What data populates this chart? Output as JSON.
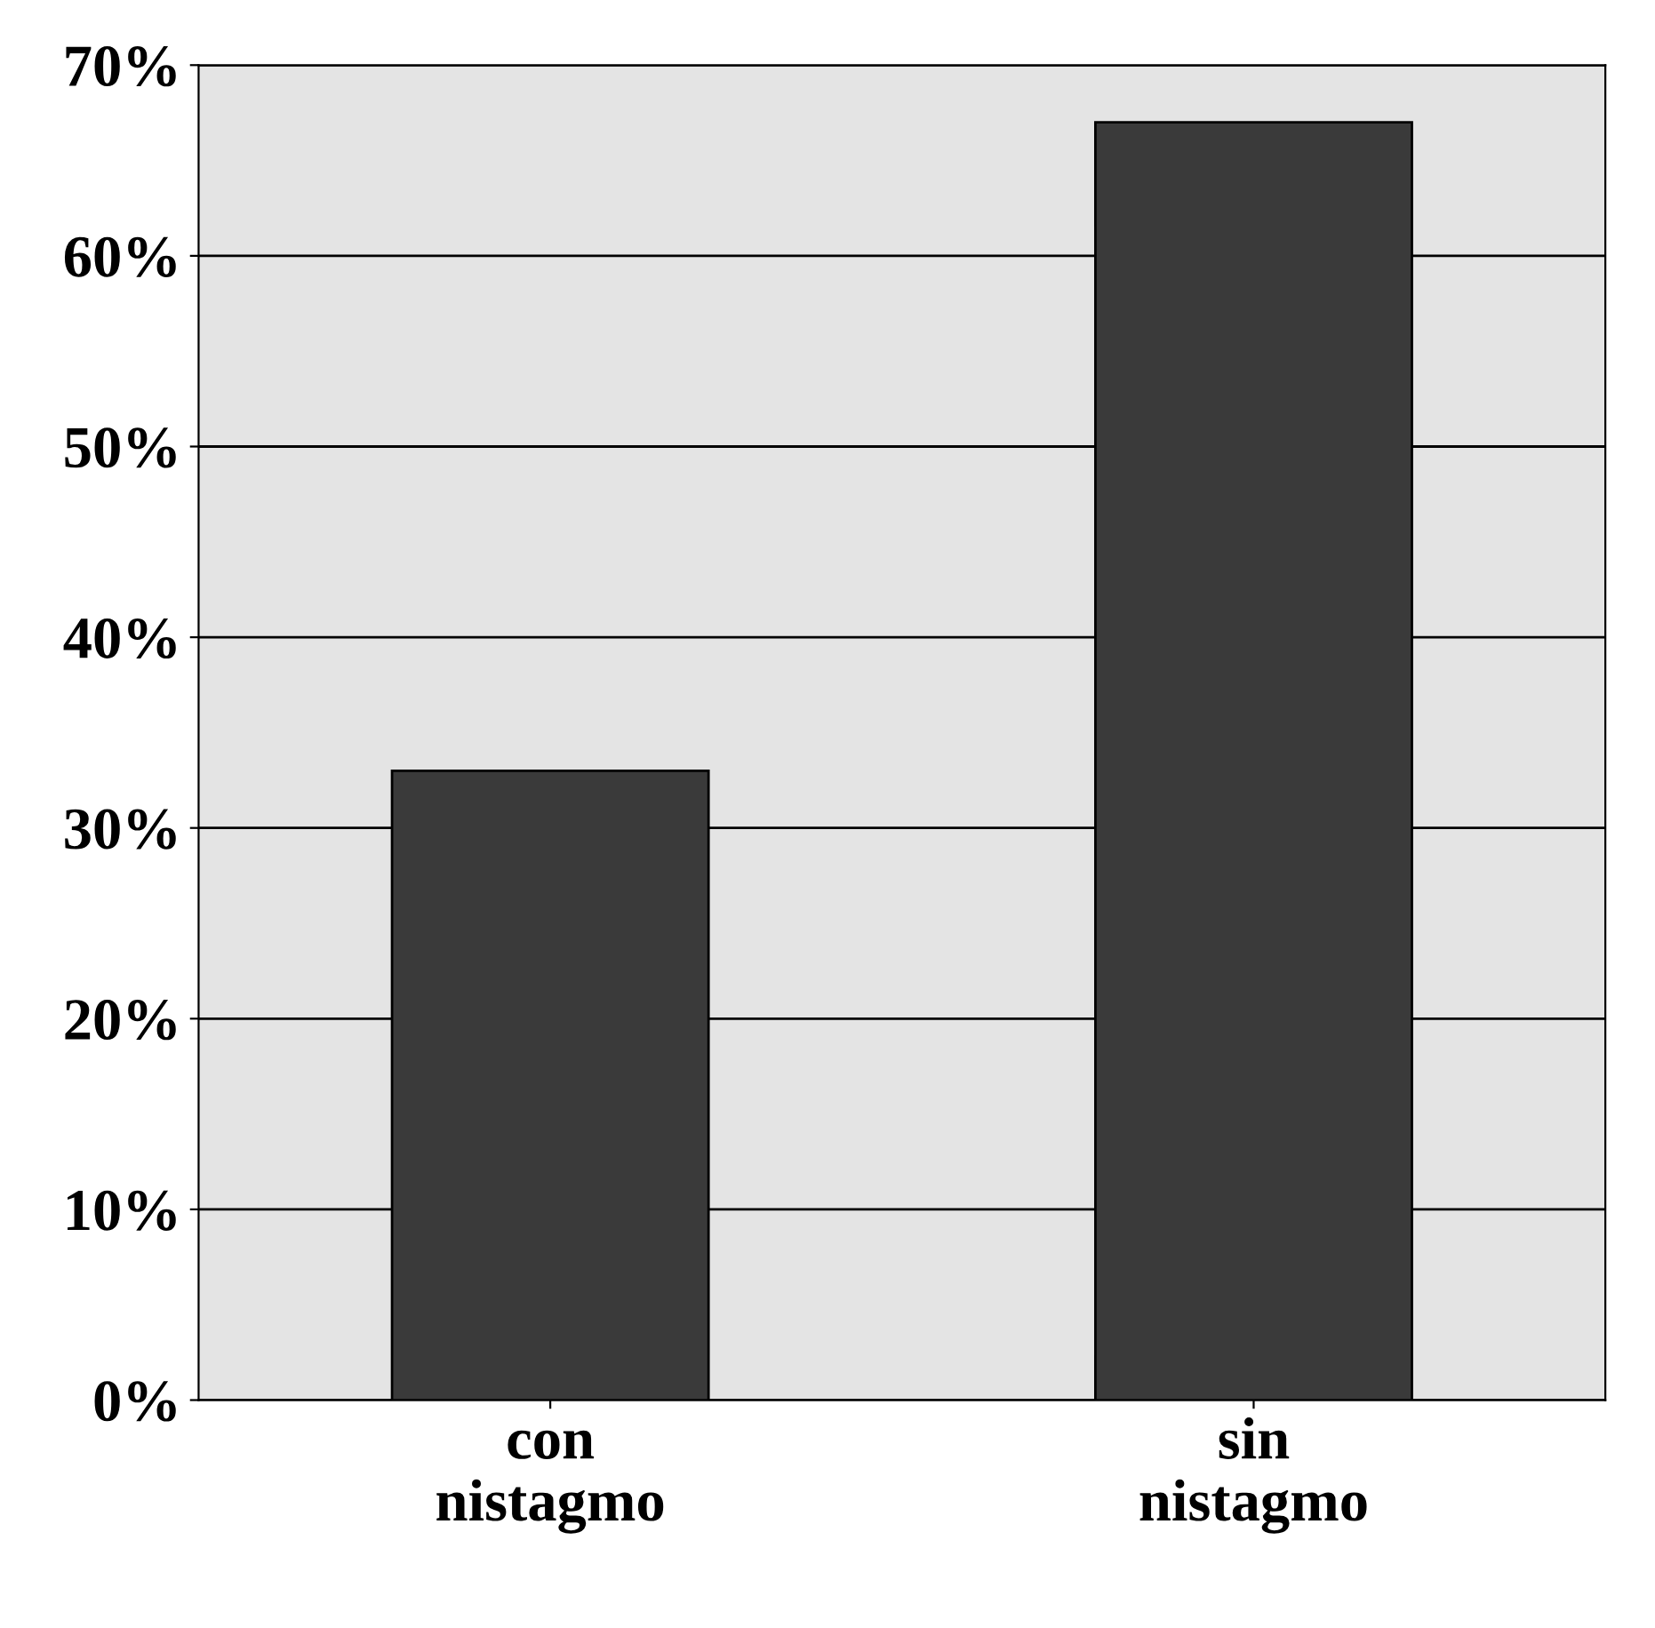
{
  "chart_data": {
    "type": "bar",
    "categories": [
      "con\nnistagmo",
      "sin\nnistagmo"
    ],
    "values": [
      33,
      67
    ],
    "color": "#3a3a3a",
    "ylim": [
      0,
      70
    ],
    "yticks": [
      {
        "value": 0,
        "label": "0%"
      },
      {
        "value": 10,
        "label": "10%"
      },
      {
        "value": 20,
        "label": "20%"
      },
      {
        "value": 30,
        "label": "30%"
      },
      {
        "value": 40,
        "label": "40%"
      },
      {
        "value": 50,
        "label": "50%"
      },
      {
        "value": 60,
        "label": "60%"
      },
      {
        "value": 70,
        "label": "70%"
      }
    ],
    "grid": "y"
  }
}
